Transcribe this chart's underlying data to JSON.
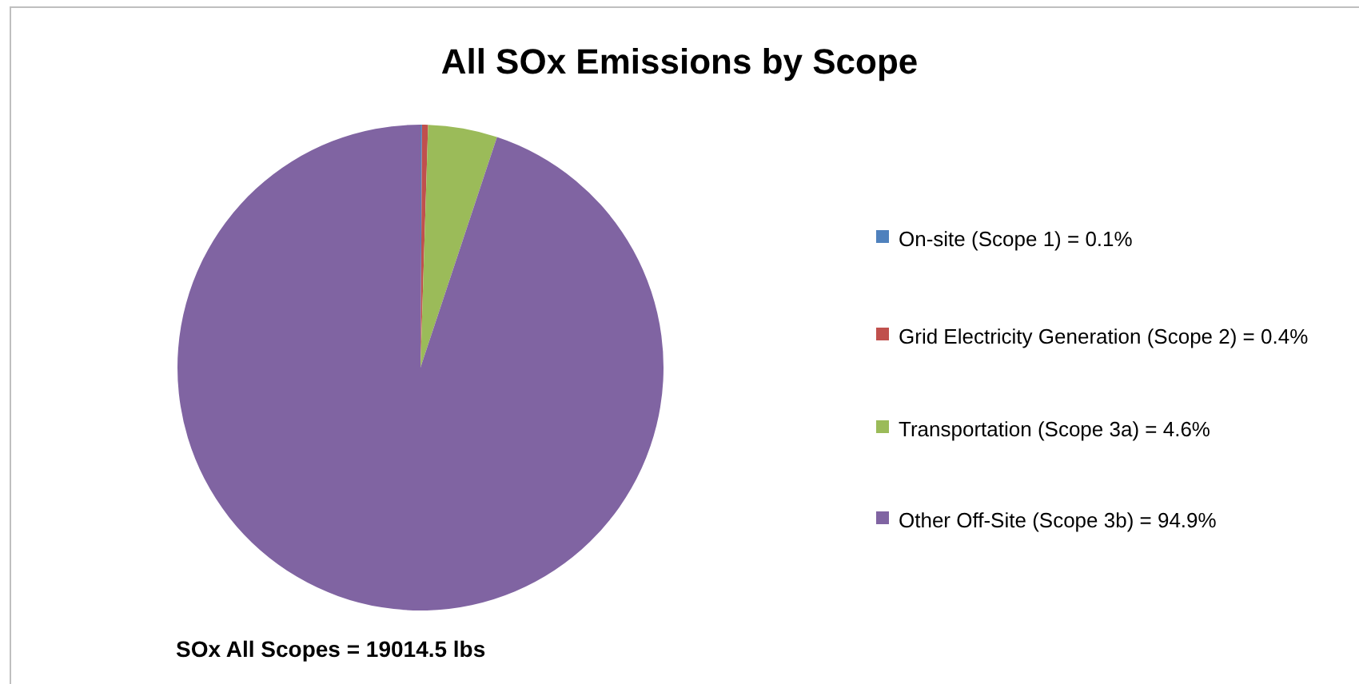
{
  "chart_data": {
    "type": "pie",
    "title": "All SOx Emissions by Scope",
    "categories": [
      "On-site (Scope 1) = 0.1%",
      "Grid Electricity Generation (Scope 2) = 0.4%",
      "Transportation (Scope 3a) = 4.6%",
      "Other Off-Site (Scope 3b) = 94.9%"
    ],
    "values": [
      0.1,
      0.4,
      4.6,
      94.9
    ],
    "colors": [
      "#4f81bd",
      "#c0504d",
      "#9bbb59",
      "#8064a2"
    ],
    "legend": "right",
    "annotations": [
      "SOx All Scopes = 19014.5 lbs"
    ]
  }
}
